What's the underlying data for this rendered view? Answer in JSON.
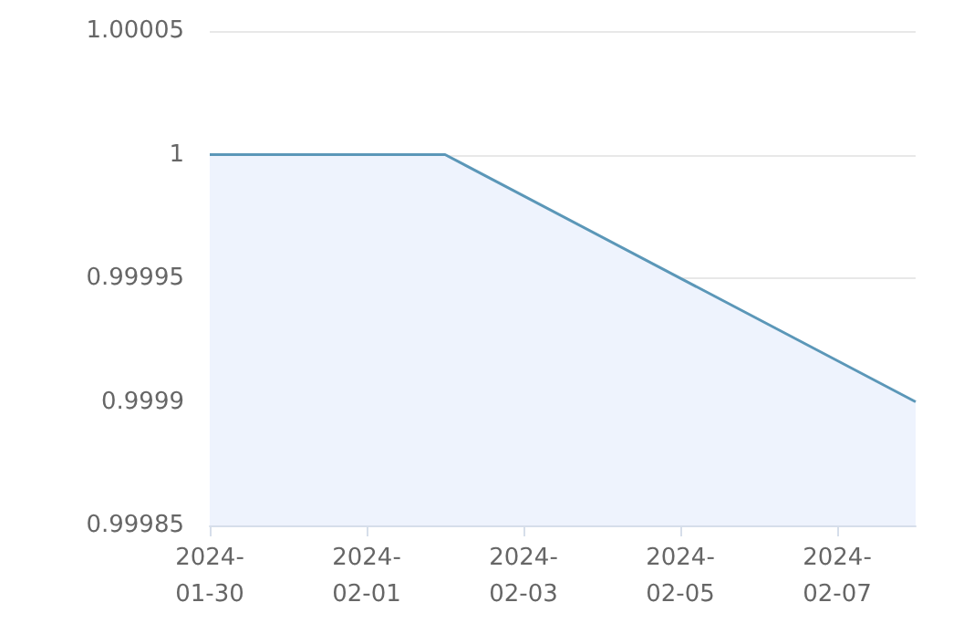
{
  "chart_data": {
    "type": "area",
    "x": [
      "2024-01-30",
      "2024-02-02",
      "2024-02-08"
    ],
    "series": [
      {
        "color": "#5b97b8",
        "values": [
          1,
          1,
          0.9999
        ]
      }
    ],
    "xlim": [
      "2024-01-30",
      "2024-02-08"
    ],
    "xticks": [
      "2024-01-30",
      "2024-02-01",
      "2024-02-03",
      "2024-02-05",
      "2024-02-07"
    ],
    "ylim": [
      0.99985,
      1.00005
    ],
    "yticks": [
      0.99985,
      0.9999,
      0.99995,
      1,
      1.00005
    ],
    "grid": "y",
    "marker": "none"
  }
}
